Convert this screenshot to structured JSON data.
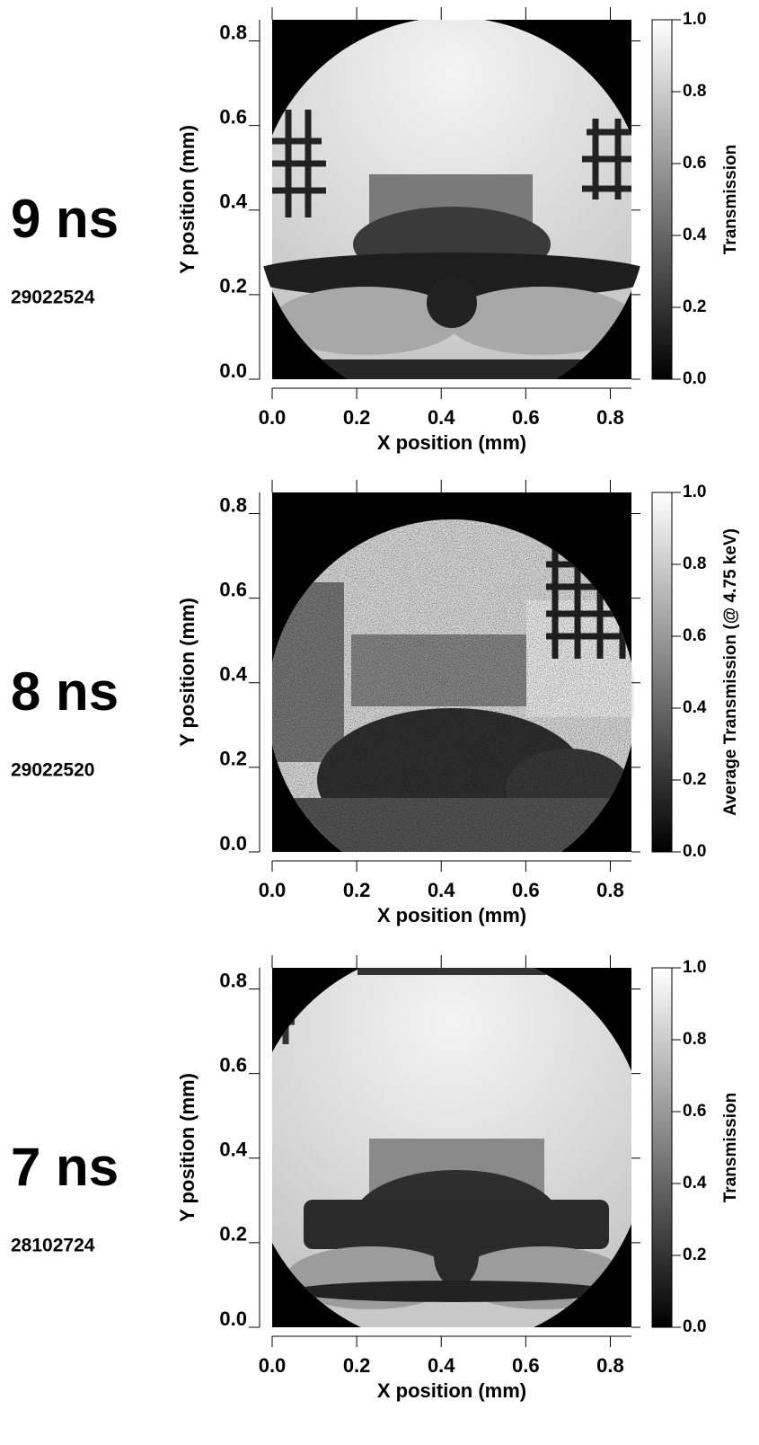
{
  "chart_data": [
    {
      "type": "radiograph",
      "title": "9 ns",
      "subtitle": "29022524",
      "x_label": "X position (mm)",
      "y_label": "Y position (mm)",
      "xlim": [
        0,
        0.85
      ],
      "ylim": [
        0,
        0.85
      ],
      "xticks": [
        {
          "value": 0,
          "label": "0.0"
        },
        0.2,
        0.4,
        0.6,
        0.8
      ],
      "yticks": [
        {
          "value": 0,
          "label": "0.0"
        },
        0.2,
        0.4,
        0.6,
        0.8
      ],
      "clim": [
        0,
        1
      ],
      "cticks": [
        {
          "value": 0,
          "label": "0.0"
        },
        0.2,
        0.4,
        0.6,
        0.8,
        {
          "value": 1,
          "label": "1.0"
        }
      ],
      "colorbar_label": "Transmission"
    },
    {
      "type": "radiograph",
      "title": "8 ns",
      "subtitle": "29022520",
      "x_label": "X position (mm)",
      "y_label": "Y position (mm)",
      "xlim": [
        0,
        0.85
      ],
      "ylim": [
        0,
        0.85
      ],
      "xticks": [
        {
          "value": 0,
          "label": "0.0"
        },
        0.2,
        0.4,
        0.6,
        0.8
      ],
      "yticks": [
        {
          "value": 0,
          "label": "0.0"
        },
        0.2,
        0.4,
        0.6,
        0.8
      ],
      "clim": [
        0,
        1
      ],
      "cticks": [
        {
          "value": 0,
          "label": "0.0"
        },
        0.2,
        0.4,
        0.6,
        0.8,
        {
          "value": 1,
          "label": "1.0"
        }
      ],
      "colorbar_label": "Average Transmission (@ 4.75 keV)"
    },
    {
      "type": "radiograph",
      "title": "7 ns",
      "subtitle": "28102724",
      "x_label": "X position (mm)",
      "y_label": "Y position (mm)",
      "xlim": [
        0,
        0.85
      ],
      "ylim": [
        0,
        0.85
      ],
      "xticks": [
        {
          "value": 0,
          "label": "0.0"
        },
        0.2,
        0.4,
        0.6,
        0.8
      ],
      "yticks": [
        {
          "value": 0,
          "label": "0.0"
        },
        0.2,
        0.4,
        0.6,
        0.8
      ],
      "clim": [
        0,
        1
      ],
      "cticks": [
        {
          "value": 0,
          "label": "0.0"
        },
        0.2,
        0.4,
        0.6,
        0.8,
        {
          "value": 1,
          "label": "1.0"
        }
      ],
      "colorbar_label": "Transmission"
    }
  ]
}
